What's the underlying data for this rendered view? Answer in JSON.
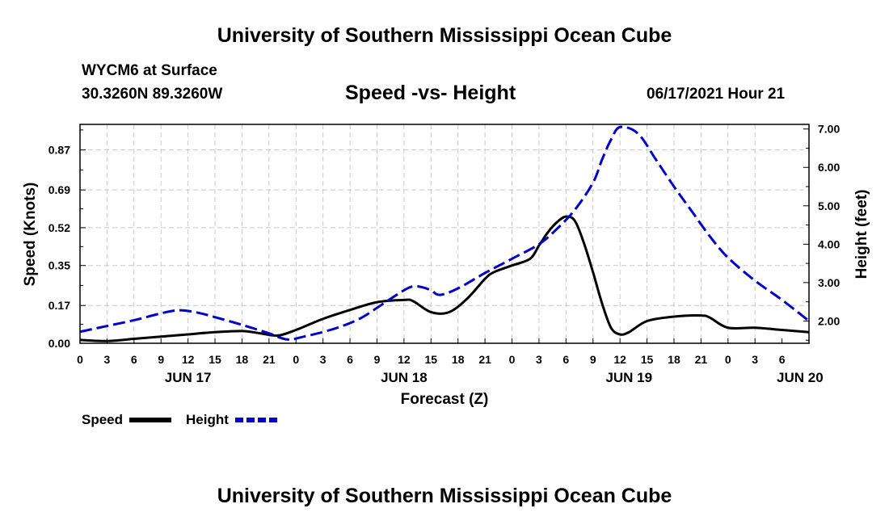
{
  "header": {
    "title": "University of Southern Mississippi Ocean Cube",
    "station": "WYCM6 at Surface",
    "coordinates": "30.3260N  89.3260W",
    "chart_title": "Speed -vs- Height",
    "datetime": "06/17/2021 Hour 21"
  },
  "footer": {
    "title": "University of Southern Mississippi Ocean Cube"
  },
  "colors": {
    "speed": "#000000",
    "height": "#0000cc",
    "grid": "#c8c8c8"
  },
  "chart_data": {
    "type": "line",
    "title": "Speed -vs- Height",
    "xlabel": "Forecast (Z)",
    "ylabel_left": "Speed (Knots)",
    "ylabel_right": "Height (feet)",
    "x_hours_range": [
      0,
      81
    ],
    "x_tick_labels": [
      "0",
      "3",
      "6",
      "9",
      "12",
      "15",
      "18",
      "21",
      "0",
      "3",
      "6",
      "9",
      "12",
      "15",
      "18",
      "21",
      "0",
      "3",
      "6",
      "9",
      "12",
      "15",
      "18",
      "21",
      "0",
      "3",
      "6"
    ],
    "date_labels": [
      {
        "hour": 12,
        "label": "JUN 17"
      },
      {
        "hour": 36,
        "label": "JUN 18"
      },
      {
        "hour": 61,
        "label": "JUN 19"
      },
      {
        "hour": 80,
        "label": "JUN 20"
      }
    ],
    "y_left": {
      "range": [
        0,
        0.985
      ],
      "ticks": [
        0.0,
        0.17,
        0.35,
        0.52,
        0.69,
        0.87
      ],
      "tick_labels": [
        "0.00",
        "0.17",
        "0.35",
        "0.52",
        "0.69",
        "0.87"
      ]
    },
    "y_right": {
      "range": [
        1.42,
        7.12
      ],
      "ticks": [
        2.0,
        3.0,
        4.0,
        5.0,
        6.0,
        7.0
      ],
      "tick_labels": [
        "2.00",
        "3.00",
        "4.00",
        "5.00",
        "6.00",
        "7.00"
      ]
    },
    "grid": true,
    "legend": [
      {
        "name": "Speed",
        "style": "solid"
      },
      {
        "name": "Height",
        "style": "dashed"
      }
    ],
    "series": [
      {
        "name": "Speed",
        "axis": "left",
        "style": "solid",
        "x": [
          0,
          3,
          6,
          9,
          12,
          15,
          18,
          20,
          22,
          24,
          27,
          30,
          33,
          36,
          37,
          39,
          41,
          43,
          45,
          46,
          48,
          50,
          51,
          52,
          53,
          54,
          55,
          56,
          57,
          58,
          59,
          60,
          61,
          63,
          66,
          69,
          70,
          72,
          75,
          78,
          81
        ],
        "values": [
          0.015,
          0.01,
          0.02,
          0.03,
          0.04,
          0.05,
          0.055,
          0.045,
          0.035,
          0.06,
          0.11,
          0.15,
          0.185,
          0.195,
          0.19,
          0.14,
          0.14,
          0.2,
          0.29,
          0.32,
          0.35,
          0.38,
          0.44,
          0.5,
          0.545,
          0.57,
          0.55,
          0.45,
          0.32,
          0.18,
          0.07,
          0.04,
          0.05,
          0.1,
          0.12,
          0.125,
          0.115,
          0.07,
          0.07,
          0.06,
          0.05
        ]
      },
      {
        "name": "Height",
        "axis": "right",
        "style": "dashed",
        "x": [
          0,
          3,
          6,
          9,
          11,
          13,
          15,
          18,
          21,
          23,
          25,
          28,
          31,
          34,
          36,
          37,
          38,
          39,
          40,
          42,
          45,
          48,
          51,
          53,
          55,
          57,
          58,
          59,
          60,
          62,
          64,
          66,
          68,
          70,
          72,
          75,
          78,
          81
        ],
        "values": [
          1.72,
          1.87,
          2.02,
          2.2,
          2.28,
          2.22,
          2.1,
          1.9,
          1.68,
          1.52,
          1.6,
          1.78,
          2.05,
          2.5,
          2.8,
          2.9,
          2.88,
          2.8,
          2.68,
          2.85,
          3.25,
          3.62,
          4.0,
          4.4,
          4.9,
          5.6,
          6.2,
          6.72,
          7.05,
          6.88,
          6.2,
          5.5,
          4.85,
          4.2,
          3.65,
          3.05,
          2.55,
          2.0
        ]
      }
    ]
  }
}
